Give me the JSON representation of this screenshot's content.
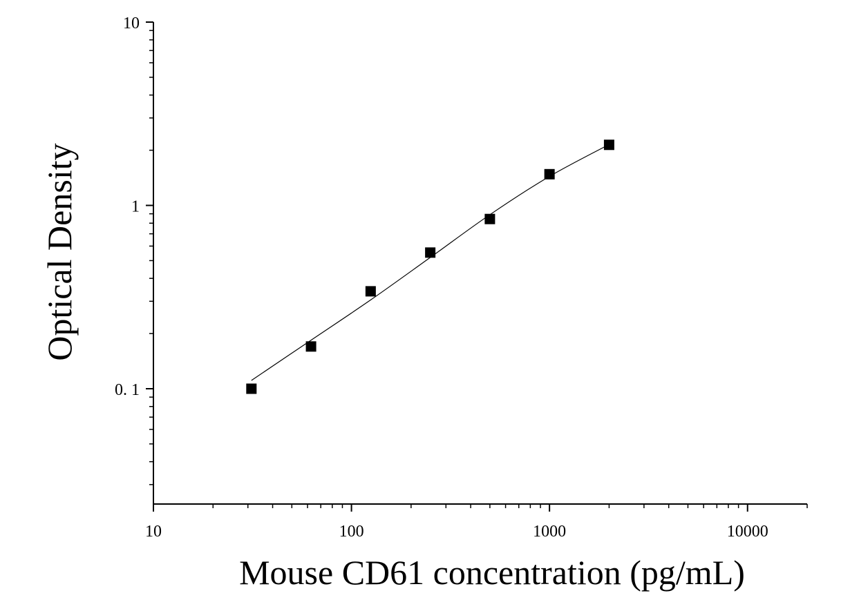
{
  "chart_data": {
    "type": "scatter",
    "title": "",
    "xlabel": "Mouse CD61 concentration (pg/mL)",
    "ylabel": "Optical Density",
    "x_scale": "log",
    "y_scale": "log",
    "xlim": [
      10,
      20000
    ],
    "ylim": [
      0.0235,
      10
    ],
    "x_ticks": [
      {
        "value": 10,
        "label": "10"
      },
      {
        "value": 100,
        "label": "100"
      },
      {
        "value": 1000,
        "label": "1000"
      },
      {
        "value": 10000,
        "label": "10000"
      }
    ],
    "y_ticks": [
      {
        "value": 0.1,
        "label": "0. 1"
      },
      {
        "value": 1,
        "label": "1"
      },
      {
        "value": 10,
        "label": "10"
      }
    ],
    "grid": false,
    "legend": "none",
    "series": [
      {
        "marker": "square",
        "color": "#000000",
        "points": [
          {
            "x": 31.25,
            "y": 0.1
          },
          {
            "x": 62.5,
            "y": 0.17
          },
          {
            "x": 125,
            "y": 0.34
          },
          {
            "x": 250,
            "y": 0.553
          },
          {
            "x": 500,
            "y": 0.843
          },
          {
            "x": 1000,
            "y": 1.48
          },
          {
            "x": 2000,
            "y": 2.14
          }
        ]
      }
    ],
    "fit_curve": {
      "color": "#000000",
      "points": [
        {
          "x": 31.25,
          "y": 0.111
        },
        {
          "x": 62.5,
          "y": 0.184
        },
        {
          "x": 125,
          "y": 0.305
        },
        {
          "x": 250,
          "y": 0.52
        },
        {
          "x": 500,
          "y": 0.89
        },
        {
          "x": 1000,
          "y": 1.44
        },
        {
          "x": 2000,
          "y": 2.15
        }
      ]
    }
  }
}
